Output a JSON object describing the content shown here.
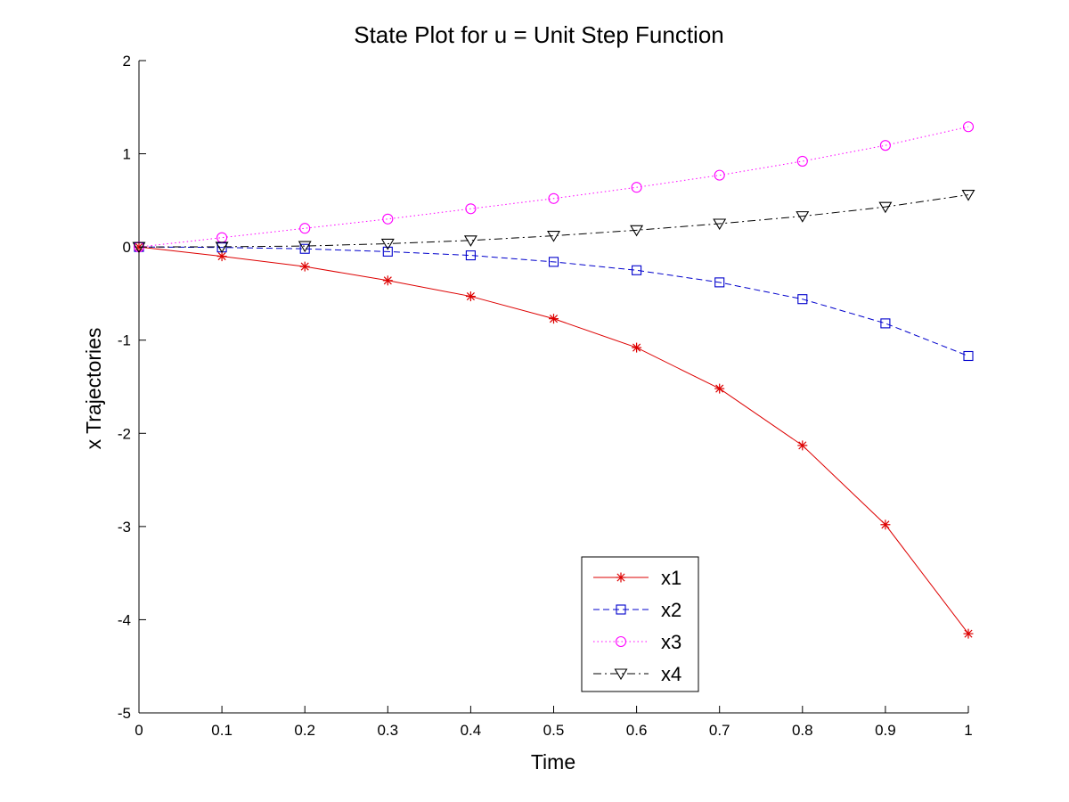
{
  "chart_data": {
    "type": "line",
    "title": "State Plot for u = Unit Step Function",
    "xlabel": "Time",
    "ylabel": "x Trajectories",
    "xlim": [
      0,
      1
    ],
    "ylim": [
      -5,
      2
    ],
    "grid": false,
    "legend_position": "bottom-center",
    "x_ticks": [
      0,
      0.1,
      0.2,
      0.3,
      0.4,
      0.5,
      0.6,
      0.7,
      0.8,
      0.9,
      1
    ],
    "x_tick_labels": [
      "0",
      "0.1",
      "0.2",
      "0.3",
      "0.4",
      "0.5",
      "0.6",
      "0.7",
      "0.8",
      "0.9",
      "1"
    ],
    "y_ticks": [
      -5,
      -4,
      -3,
      -2,
      -1,
      0,
      1,
      2
    ],
    "y_tick_labels": [
      "-5",
      "-4",
      "-3",
      "-2",
      "-1",
      "0",
      "1",
      "2"
    ],
    "x": [
      0,
      0.1,
      0.2,
      0.3,
      0.4,
      0.5,
      0.6,
      0.7,
      0.8,
      0.9,
      1
    ],
    "series": [
      {
        "name": "x1",
        "color": "#dd0000",
        "line_style": "solid",
        "marker": "asterisk",
        "values": [
          0,
          -0.1,
          -0.21,
          -0.36,
          -0.53,
          -0.77,
          -1.08,
          -1.52,
          -2.13,
          -2.98,
          -4.15
        ]
      },
      {
        "name": "x2",
        "color": "#0000cc",
        "line_style": "dashed",
        "marker": "square",
        "values": [
          0,
          -0.005,
          -0.02,
          -0.05,
          -0.09,
          -0.16,
          -0.25,
          -0.38,
          -0.56,
          -0.82,
          -1.17
        ]
      },
      {
        "name": "x3",
        "color": "#ff00ff",
        "line_style": "dotted",
        "marker": "circle",
        "values": [
          0,
          0.1,
          0.2,
          0.3,
          0.41,
          0.52,
          0.64,
          0.77,
          0.92,
          1.09,
          1.29
        ]
      },
      {
        "name": "x4",
        "color": "#000000",
        "line_style": "dashdot",
        "marker": "triangle-down",
        "values": [
          0,
          0.002,
          0.01,
          0.035,
          0.07,
          0.12,
          0.18,
          0.25,
          0.33,
          0.43,
          0.56
        ]
      }
    ]
  }
}
